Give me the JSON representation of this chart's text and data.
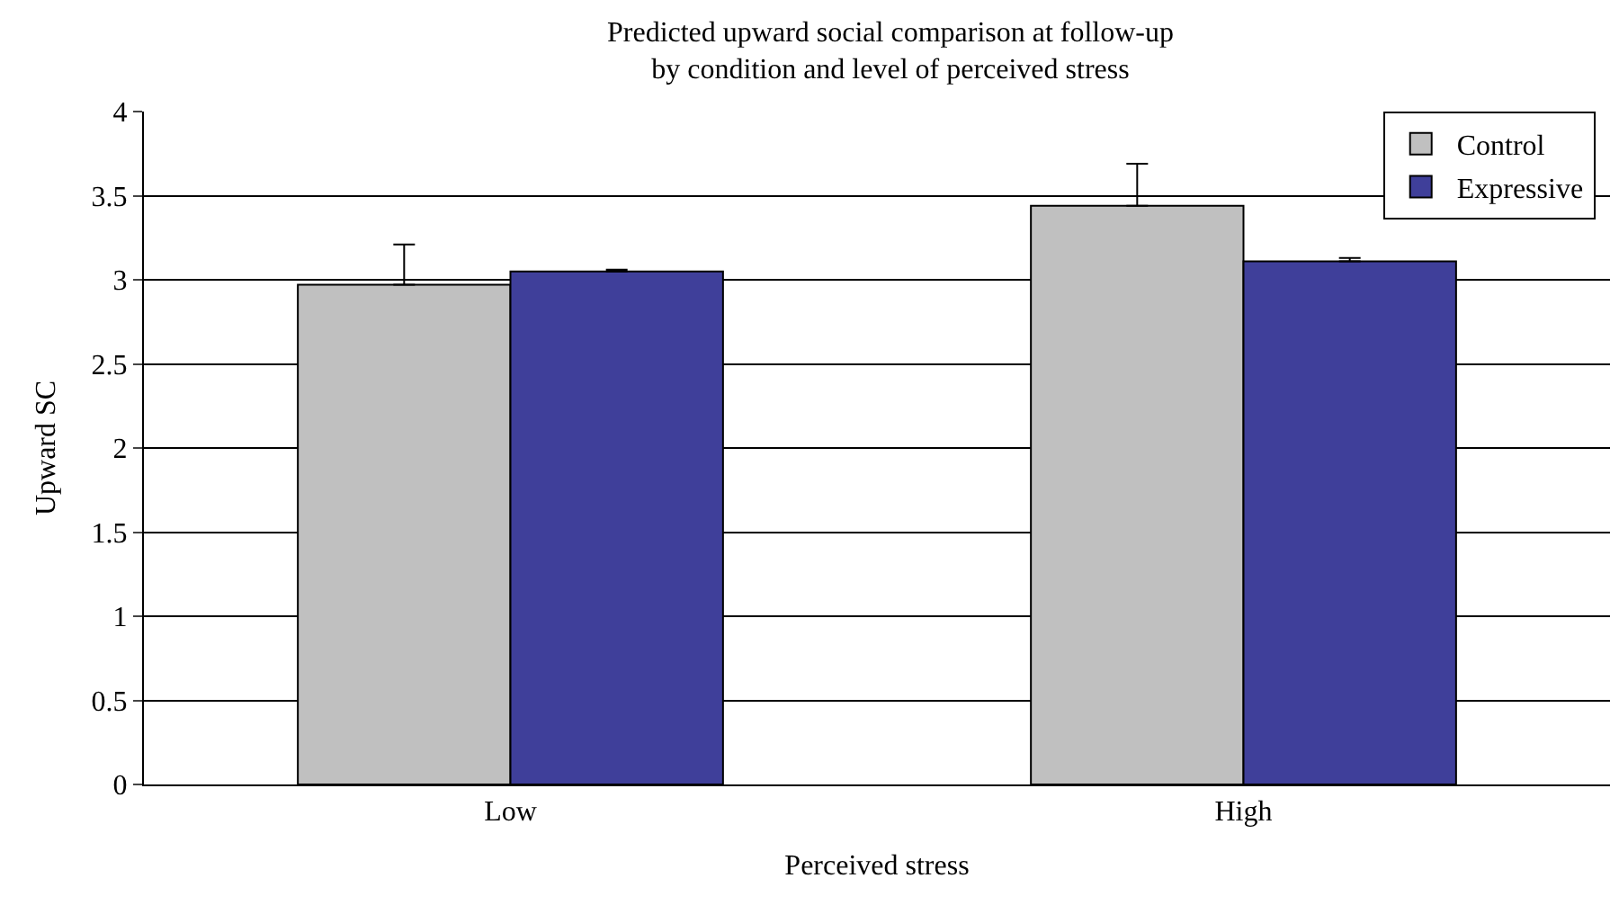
{
  "chart_data": {
    "type": "bar",
    "title": "Predicted upward social comparison at follow-up",
    "subtitle": "by condition and level of perceived stress",
    "xlabel": "Perceived stress",
    "ylabel": "Upward SC",
    "categories": [
      "Low",
      "High"
    ],
    "series": [
      {
        "name": "Control",
        "color": "#c0c0c0",
        "values": [
          2.97,
          3.44
        ],
        "errors": [
          [
            2.97,
            3.21
          ],
          [
            3.44,
            3.69
          ]
        ]
      },
      {
        "name": "Expressive",
        "color": "#3f3f9a",
        "values": [
          3.05,
          3.11
        ],
        "errors": [
          [
            3.05,
            3.06
          ],
          [
            3.11,
            3.13
          ]
        ]
      }
    ],
    "ylim": [
      0,
      4
    ],
    "yticks": [
      0,
      0.5,
      1,
      1.5,
      2,
      2.5,
      3,
      3.5,
      4
    ],
    "grid": "y",
    "legend": "top right"
  }
}
